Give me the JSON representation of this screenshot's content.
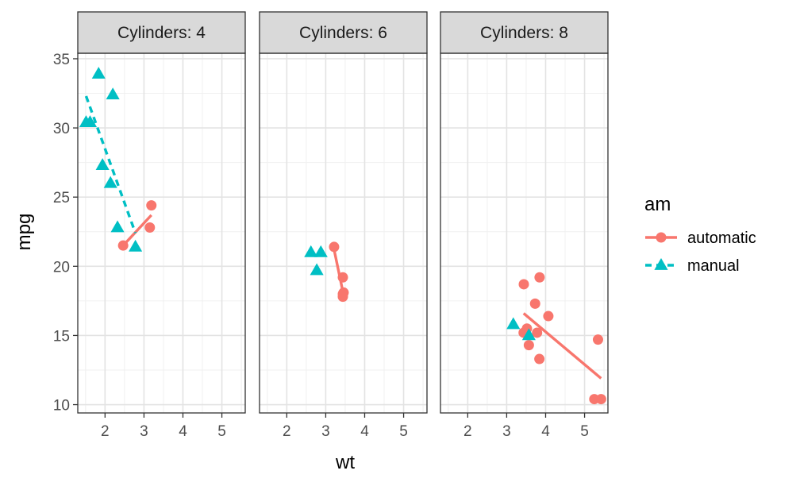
{
  "chart_data": {
    "type": "scatter",
    "facet_variable": "cyl",
    "facets": [
      {
        "label": "Cylinders: 4",
        "fit": {
          "automatic": [
            [
              2.465,
              21.5
            ],
            [
              3.19,
              23.7
            ]
          ],
          "manual": [
            [
              1.513,
              32.3
            ],
            [
              2.78,
              22.4
            ]
          ]
        }
      },
      {
        "label": "Cylinders: 6",
        "fit": {
          "automatic": [
            [
              3.215,
              21.2
            ],
            [
              3.46,
              17.9
            ]
          ],
          "manual": []
        }
      },
      {
        "label": "Cylinders: 8",
        "fit": {
          "automatic": [
            [
              3.435,
              16.6
            ],
            [
              5.424,
              11.9
            ]
          ],
          "manual": []
        }
      }
    ],
    "xlabel": "wt",
    "ylabel": "mpg",
    "xlim": [
      1.3,
      5.6
    ],
    "ylim": [
      9.4,
      35.4
    ],
    "x_ticks": [
      "2",
      "3",
      "4",
      "5"
    ],
    "y_ticks": [
      "10",
      "15",
      "20",
      "25",
      "30",
      "35"
    ],
    "grid": true,
    "legend_position": "right",
    "legend_title": "am",
    "series": [
      {
        "name": "automatic",
        "color": "#F8766D",
        "marker": "circle",
        "linetype": "solid",
        "points": [
          {
            "cyl": 4,
            "wt": 2.465,
            "mpg": 21.5
          },
          {
            "cyl": 4,
            "wt": 3.15,
            "mpg": 22.8
          },
          {
            "cyl": 4,
            "wt": 3.19,
            "mpg": 24.4
          },
          {
            "cyl": 6,
            "wt": 3.215,
            "mpg": 21.4
          },
          {
            "cyl": 6,
            "wt": 3.44,
            "mpg": 19.2
          },
          {
            "cyl": 6,
            "wt": 3.44,
            "mpg": 17.8
          },
          {
            "cyl": 6,
            "wt": 3.46,
            "mpg": 18.1
          },
          {
            "cyl": 6,
            "wt": 3.44,
            "mpg": 18.0
          },
          {
            "cyl": 8,
            "wt": 3.44,
            "mpg": 18.7
          },
          {
            "cyl": 8,
            "wt": 3.57,
            "mpg": 14.3
          },
          {
            "cyl": 8,
            "wt": 4.07,
            "mpg": 16.4
          },
          {
            "cyl": 8,
            "wt": 3.73,
            "mpg": 17.3
          },
          {
            "cyl": 8,
            "wt": 3.78,
            "mpg": 15.2
          },
          {
            "cyl": 8,
            "wt": 5.25,
            "mpg": 10.4
          },
          {
            "cyl": 8,
            "wt": 5.424,
            "mpg": 10.4
          },
          {
            "cyl": 8,
            "wt": 5.345,
            "mpg": 14.7
          },
          {
            "cyl": 8,
            "wt": 3.52,
            "mpg": 15.5
          },
          {
            "cyl": 8,
            "wt": 3.435,
            "mpg": 15.2
          },
          {
            "cyl": 8,
            "wt": 3.84,
            "mpg": 13.3
          },
          {
            "cyl": 8,
            "wt": 3.845,
            "mpg": 19.2
          }
        ]
      },
      {
        "name": "manual",
        "color": "#00BFC4",
        "marker": "triangle",
        "linetype": "dashed",
        "points": [
          {
            "cyl": 4,
            "wt": 2.2,
            "mpg": 32.4
          },
          {
            "cyl": 4,
            "wt": 1.615,
            "mpg": 30.4
          },
          {
            "cyl": 4,
            "wt": 1.835,
            "mpg": 33.9
          },
          {
            "cyl": 4,
            "wt": 1.935,
            "mpg": 27.3
          },
          {
            "cyl": 4,
            "wt": 2.14,
            "mpg": 26.0
          },
          {
            "cyl": 4,
            "wt": 1.513,
            "mpg": 30.4
          },
          {
            "cyl": 4,
            "wt": 2.78,
            "mpg": 21.4
          },
          {
            "cyl": 4,
            "wt": 2.32,
            "mpg": 22.8
          },
          {
            "cyl": 6,
            "wt": 2.62,
            "mpg": 21.0
          },
          {
            "cyl": 6,
            "wt": 2.875,
            "mpg": 21.0
          },
          {
            "cyl": 6,
            "wt": 2.77,
            "mpg": 19.7
          },
          {
            "cyl": 8,
            "wt": 3.17,
            "mpg": 15.8
          },
          {
            "cyl": 8,
            "wt": 3.57,
            "mpg": 15.0
          }
        ]
      }
    ]
  }
}
